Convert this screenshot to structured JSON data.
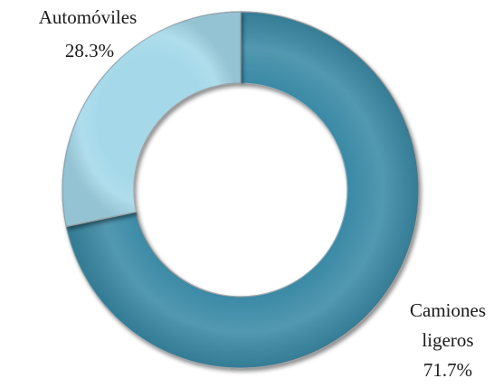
{
  "chart_data": {
    "type": "pie",
    "variant": "donut",
    "title": "",
    "legend": "none",
    "slices": [
      {
        "label_lines": [
          "Camiones",
          "ligeros"
        ],
        "value": 71.7,
        "value_label": "71.7%",
        "color": "#3a8aa6"
      },
      {
        "label_lines": [
          "Automóviles"
        ],
        "value": 28.3,
        "value_label": "28.3%",
        "color": "#a5d9ea"
      }
    ]
  }
}
